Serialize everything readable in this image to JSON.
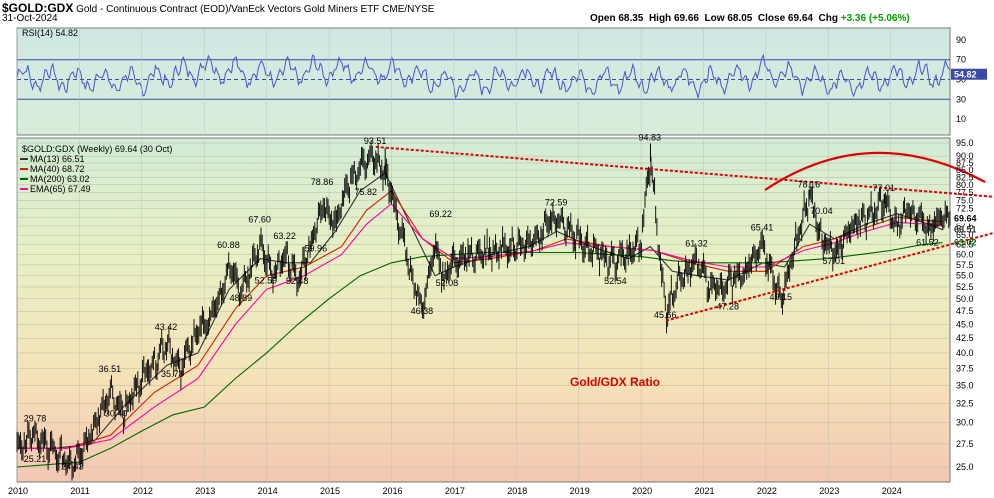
{
  "header": {
    "symbol": "$GOLD:GDX",
    "description": "Gold - Continuous Contract (EOD)/VanEck Vectors Gold Miners ETF",
    "exchange": "CME/NYSE",
    "date": "31-Oct-2024",
    "open_label": "Open",
    "open": "68.35",
    "high_label": "High",
    "high": "69.66",
    "low_label": "Low",
    "low": "68.05",
    "close_label": "Close",
    "close": "69.64",
    "chg_label": "Chg",
    "chg": "+3.36 (+5.06%)",
    "chg_color": "#00a000"
  },
  "chart_data": [
    {
      "type": "line",
      "name": "RSI panel",
      "legend": "RSI(14) 54.82",
      "last_value": "54.82",
      "y_ticks": [
        90,
        70,
        50,
        30,
        10
      ],
      "ylim": [
        0,
        100
      ],
      "reference_lines": [
        70,
        50,
        30
      ],
      "x": [
        2010,
        2011,
        2012,
        2013,
        2014,
        2015,
        2016,
        2017,
        2018,
        2019,
        2020,
        2021,
        2022,
        2023,
        2024,
        2024.83
      ],
      "series": [
        {
          "values": [
            52,
            50,
            48,
            62,
            55,
            60,
            58,
            45,
            52,
            48,
            50,
            48,
            58,
            46,
            52,
            55
          ]
        }
      ]
    },
    {
      "type": "line",
      "name": "Gold/GDX weekly",
      "legend_title": "$GOLD:GDX (Weekly) 69.64 (30 Oct)",
      "legend": [
        "MA(13) 66.51",
        "MA(40) 68.72",
        "MA(200) 63.02",
        "EMA(65) 67.49"
      ],
      "annotation": "Gold/GDX Ratio",
      "x_ticks": [
        "2010",
        "2011",
        "2012",
        "2013",
        "2014",
        "2015",
        "2016",
        "2017",
        "2018",
        "2019",
        "2020",
        "2021",
        "2022",
        "2023",
        "2024"
      ],
      "y_ticks": [
        25.0,
        27.5,
        30.0,
        32.5,
        35.0,
        37.5,
        40.0,
        42.5,
        45.0,
        47.5,
        50.0,
        52.5,
        55.0,
        57.5,
        60.0,
        62.5,
        65.0,
        67.5,
        70.0,
        72.5,
        75.0,
        77.5,
        80.0,
        82.5,
        85.0,
        87.5,
        90.0,
        95.0
      ],
      "ylim": [
        23.5,
        97
      ],
      "xlim": [
        2010,
        2024.95
      ],
      "price_tags": [
        "69.64",
        "66.51",
        "63.02"
      ],
      "peak_labels": [
        {
          "text": "29.78",
          "x": 2010.3,
          "y": 29.78
        },
        {
          "text": "25.21",
          "x": 2010.3,
          "y": 25.21
        },
        {
          "text": "24.43",
          "x": 2010.9,
          "y": 24.43
        },
        {
          "text": "36.51",
          "x": 2011.5,
          "y": 36.51
        },
        {
          "text": "30.40",
          "x": 2011.6,
          "y": 30.4
        },
        {
          "text": "43.42",
          "x": 2012.4,
          "y": 43.42
        },
        {
          "text": "35.78",
          "x": 2012.5,
          "y": 35.78
        },
        {
          "text": "60.88",
          "x": 2013.4,
          "y": 60.88
        },
        {
          "text": "67.60",
          "x": 2013.9,
          "y": 67.6
        },
        {
          "text": "48.89",
          "x": 2013.6,
          "y": 48.89
        },
        {
          "text": "63.22",
          "x": 2014.3,
          "y": 63.22
        },
        {
          "text": "52.59",
          "x": 2014.0,
          "y": 52.59
        },
        {
          "text": "52.48",
          "x": 2014.5,
          "y": 52.48
        },
        {
          "text": "78.86",
          "x": 2014.9,
          "y": 78.86
        },
        {
          "text": "59.96",
          "x": 2014.8,
          "y": 59.96
        },
        {
          "text": "93.51",
          "x": 2015.75,
          "y": 93.51
        },
        {
          "text": "75.82",
          "x": 2015.6,
          "y": 75.82
        },
        {
          "text": "69.22",
          "x": 2016.8,
          "y": 69.22
        },
        {
          "text": "46.38",
          "x": 2016.5,
          "y": 46.38
        },
        {
          "text": "52.08",
          "x": 2016.9,
          "y": 52.08
        },
        {
          "text": "72.59",
          "x": 2018.65,
          "y": 72.59
        },
        {
          "text": "52.54",
          "x": 2019.6,
          "y": 52.54
        },
        {
          "text": "94.83",
          "x": 2020.15,
          "y": 94.83
        },
        {
          "text": "45.66",
          "x": 2020.4,
          "y": 45.66
        },
        {
          "text": "61.32",
          "x": 2020.9,
          "y": 61.32
        },
        {
          "text": "47.28",
          "x": 2021.4,
          "y": 47.28
        },
        {
          "text": "65.41",
          "x": 2021.95,
          "y": 65.41
        },
        {
          "text": "49.15",
          "x": 2022.25,
          "y": 49.15
        },
        {
          "text": "78.16",
          "x": 2022.7,
          "y": 78.16
        },
        {
          "text": "70.04",
          "x": 2022.9,
          "y": 70.04
        },
        {
          "text": "57.01",
          "x": 2023.1,
          "y": 57.01
        },
        {
          "text": "77.01",
          "x": 2023.9,
          "y": 77.01
        },
        {
          "text": "61.52",
          "x": 2024.6,
          "y": 61.52
        }
      ],
      "trendlines": [
        {
          "name": "upper",
          "from": [
            2015.75,
            93.5
          ],
          "to": [
            2024.95,
            75.5
          ]
        },
        {
          "name": "lower",
          "from": [
            2020.4,
            45.7
          ],
          "to": [
            2024.95,
            63.5
          ]
        }
      ],
      "series": [
        {
          "name": "price",
          "color": "#000000",
          "x": [
            2010,
            2010.3,
            2010.6,
            2010.9,
            2011.2,
            2011.5,
            2011.7,
            2012.0,
            2012.4,
            2012.6,
            2012.9,
            2013.2,
            2013.4,
            2013.6,
            2013.9,
            2014.1,
            2014.3,
            2014.5,
            2014.7,
            2014.9,
            2015.1,
            2015.3,
            2015.5,
            2015.75,
            2015.9,
            2016.1,
            2016.3,
            2016.5,
            2016.7,
            2016.85,
            2017.0,
            2017.3,
            2017.6,
            2017.9,
            2018.2,
            2018.5,
            2018.65,
            2018.9,
            2019.2,
            2019.5,
            2019.8,
            2020.0,
            2020.15,
            2020.3,
            2020.4,
            2020.6,
            2020.9,
            2021.1,
            2021.4,
            2021.7,
            2021.95,
            2022.1,
            2022.25,
            2022.5,
            2022.7,
            2022.9,
            2023.1,
            2023.3,
            2023.6,
            2023.9,
            2024.1,
            2024.3,
            2024.6,
            2024.83
          ],
          "values": [
            27.5,
            28.5,
            26.5,
            25.5,
            28.5,
            34.0,
            31.0,
            36.0,
            41.5,
            37.0,
            43.5,
            48.0,
            58.0,
            51.0,
            63.0,
            55.0,
            60.0,
            54.0,
            62.0,
            74.0,
            68.0,
            80.0,
            86.0,
            90.0,
            84.0,
            70.0,
            56.0,
            47.5,
            62.0,
            54.0,
            58.0,
            60.0,
            61.0,
            63.0,
            62.0,
            68.0,
            70.0,
            65.0,
            62.0,
            58.0,
            60.0,
            63.0,
            88.0,
            58.0,
            47.5,
            54.0,
            58.0,
            52.0,
            53.0,
            57.0,
            62.0,
            55.0,
            50.0,
            64.0,
            76.0,
            64.0,
            60.0,
            66.0,
            70.0,
            74.0,
            68.0,
            72.0,
            67.0,
            69.64
          ]
        },
        {
          "name": "MA(13) 66.51",
          "color": "#333333",
          "x": [
            2010,
            2010.6,
            2011.2,
            2011.7,
            2012.4,
            2012.9,
            2013.4,
            2013.9,
            2014.3,
            2014.7,
            2015.1,
            2015.5,
            2015.9,
            2016.3,
            2016.7,
            2017.0,
            2017.6,
            2018.2,
            2018.65,
            2019.2,
            2019.8,
            2020.15,
            2020.5,
            2020.9,
            2021.4,
            2021.95,
            2022.3,
            2022.7,
            2023.1,
            2023.6,
            2024.1,
            2024.6,
            2024.83
          ],
          "values": [
            27,
            27,
            27.5,
            32,
            38,
            40,
            52,
            59,
            58,
            58,
            66,
            78,
            84,
            68,
            55,
            57,
            60,
            62,
            66,
            62,
            59,
            62,
            56,
            55,
            54,
            58,
            57,
            68,
            64,
            68,
            71,
            68,
            66.51
          ]
        },
        {
          "name": "MA(40) 68.72",
          "color": "#cc2200",
          "x": [
            2010,
            2010.8,
            2011.5,
            2012.2,
            2012.9,
            2013.5,
            2014.0,
            2014.6,
            2015.2,
            2015.6,
            2016.0,
            2016.5,
            2017.0,
            2017.6,
            2018.3,
            2018.8,
            2019.5,
            2020.2,
            2020.8,
            2021.4,
            2022.0,
            2022.6,
            2023.1,
            2023.6,
            2024.1,
            2024.6,
            2024.83
          ],
          "values": [
            27,
            27,
            28.5,
            34,
            38,
            48,
            55,
            57,
            62,
            72,
            78,
            64,
            58,
            59,
            61,
            64,
            62,
            61,
            58,
            56,
            56,
            62,
            64,
            67,
            70,
            69,
            68.72
          ]
        },
        {
          "name": "MA(200) 63.02",
          "color": "#006600",
          "x": [
            2010,
            2011,
            2011.5,
            2012.0,
            2012.5,
            2013.0,
            2013.5,
            2014.0,
            2014.5,
            2015.0,
            2015.5,
            2016.0,
            2016.5,
            2017.0,
            2017.5,
            2018.0,
            2018.5,
            2019.0,
            2019.5,
            2020.0,
            2020.5,
            2021.0,
            2021.5,
            2022.0,
            2022.5,
            2023.0,
            2023.5,
            2024.0,
            2024.5,
            2024.83
          ],
          "values": [
            25,
            25.5,
            27,
            29,
            31,
            32,
            36,
            40,
            45,
            50,
            55,
            58,
            59.5,
            60,
            60.5,
            60.5,
            60.5,
            60.5,
            60,
            59.5,
            58.5,
            58,
            58,
            58,
            58.5,
            59,
            60,
            61,
            62.5,
            63.02
          ]
        },
        {
          "name": "EMA(65) 67.49",
          "color": "#ff00aa",
          "x": [
            2010,
            2010.8,
            2011.5,
            2012.2,
            2012.9,
            2013.5,
            2014.0,
            2014.6,
            2015.2,
            2015.6,
            2016.0,
            2016.5,
            2017.0,
            2017.6,
            2018.3,
            2018.8,
            2019.5,
            2020.2,
            2020.8,
            2021.4,
            2022.0,
            2022.6,
            2023.1,
            2023.6,
            2024.1,
            2024.6,
            2024.83
          ],
          "values": [
            27,
            27,
            28,
            32,
            36,
            45,
            52,
            55,
            60,
            68,
            74,
            64,
            59,
            59.5,
            61,
            63,
            62,
            61,
            58.5,
            57,
            57,
            61,
            63,
            66,
            68.5,
            68,
            67.49
          ]
        }
      ]
    }
  ]
}
